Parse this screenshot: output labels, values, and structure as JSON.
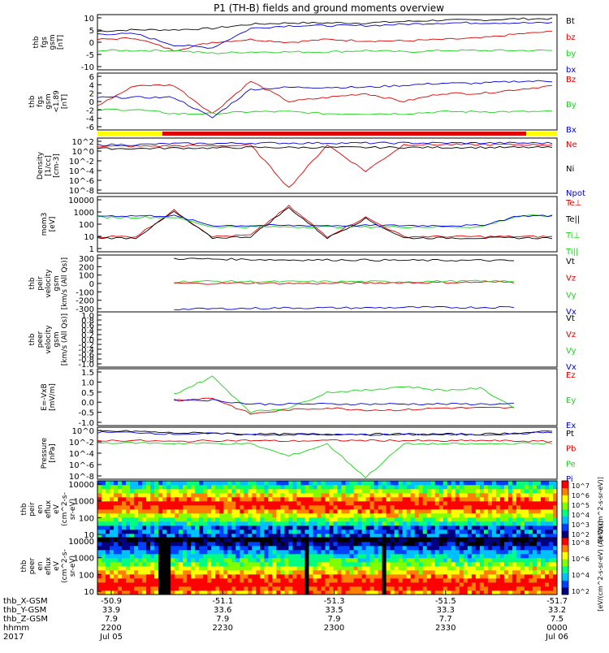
{
  "title": "P1 (TH-B) fields and ground moments overview",
  "colors": {
    "black": "#000000",
    "red": "#e00000",
    "green": "#19d419",
    "blue": "#0000dd",
    "yellow": "#ffff00"
  },
  "time_axis": {
    "ticks": [
      "2200",
      "2230",
      "2300",
      "2330",
      "0000"
    ],
    "x_gsm": [
      "-50.9",
      "-51.1",
      "-51.3",
      "-51.5",
      "-51.7"
    ],
    "y_gsm": [
      "33.9",
      "33.6",
      "33.5",
      "33.3",
      "33.2"
    ],
    "z_gsm": [
      "7.9",
      "7.9",
      "7.9",
      "7.7",
      "7.5"
    ],
    "dates": [
      "Jul 05",
      "",
      "",
      "",
      "Jul 06"
    ],
    "row_labels": [
      "thb_X-GSM",
      "thb_Y-GSM",
      "thb_Z-GSM",
      "hhmm",
      "2017"
    ]
  },
  "chart_data": [
    {
      "type": "line",
      "ylabel": [
        "thb",
        "fgs",
        "gsm",
        "[nT]"
      ],
      "yticks": [
        "10",
        "5",
        "0",
        "-5",
        "-10"
      ],
      "ylim": [
        -10,
        10
      ],
      "legend": [
        {
          "name": "Bt",
          "color": "black"
        },
        {
          "name": "bz",
          "color": "red"
        },
        {
          "name": "by",
          "color": "green"
        },
        {
          "name": "bx",
          "color": "blue"
        }
      ],
      "series": [
        {
          "name": "Bt",
          "color": "black",
          "values": [
            4,
            4.5,
            4.5,
            5,
            6.5,
            7,
            7,
            7,
            7.5,
            8,
            8,
            8.5,
            8.5
          ]
        },
        {
          "name": "bz",
          "color": "red",
          "values": [
            1,
            1.5,
            -3,
            0,
            1,
            0,
            1,
            0.5,
            0.5,
            1,
            1.5,
            3,
            4
          ]
        },
        {
          "name": "by",
          "color": "green",
          "values": [
            -3,
            -3,
            -3,
            -4,
            -3.5,
            -3.5,
            -3.5,
            -3,
            -3.5,
            -3,
            -3,
            -3,
            -3
          ]
        },
        {
          "name": "bx",
          "color": "blue",
          "values": [
            3,
            3,
            -1,
            -2,
            5,
            6,
            6,
            6,
            6.5,
            7,
            7,
            7,
            7
          ]
        }
      ]
    },
    {
      "type": "line",
      "ylabel": [
        "thb",
        "fgs",
        "gsm",
        "<1.89",
        "[nT]"
      ],
      "yticks": [
        "6",
        "4",
        "2",
        "0",
        "-2",
        "-4",
        "-6"
      ],
      "ylim": [
        -7,
        7
      ],
      "legend": [
        {
          "name": "Bz",
          "color": "red"
        },
        {
          "name": "By",
          "color": "green"
        },
        {
          "name": "Bx",
          "color": "blue"
        }
      ],
      "series": [
        {
          "name": "Bz",
          "color": "red",
          "values": [
            -1,
            4,
            4,
            -3,
            5,
            0,
            1,
            2,
            0,
            2,
            2,
            3,
            4
          ]
        },
        {
          "name": "By",
          "color": "green",
          "values": [
            -2,
            -2,
            -3,
            -3,
            -2.5,
            -2.5,
            -3,
            -3,
            -3,
            -2.5,
            -2.5,
            -2.5,
            -2.5
          ]
        },
        {
          "name": "Bx",
          "color": "blue",
          "values": [
            1,
            1,
            1,
            -4,
            3,
            3.5,
            3.5,
            3.5,
            4,
            4.5,
            4.5,
            5,
            5
          ]
        }
      ]
    },
    {
      "type": "line",
      "ylabel": [
        "Density",
        "[1/cc]",
        "[cm-3]"
      ],
      "yticks": [
        "10^2",
        "10^0",
        "10^-2",
        "10^-4",
        "10^-6",
        "10^-8"
      ],
      "ylim": [
        -8,
        2
      ],
      "log": true,
      "legend": [
        {
          "name": "Ne",
          "color": "red"
        },
        {
          "name": "Ni",
          "color": "black"
        },
        {
          "name": "Npot",
          "color": "blue"
        }
      ],
      "series": [
        {
          "name": "Ne",
          "color": "red",
          "values": [
            0.5,
            0.5,
            0.6,
            0.6,
            0.7,
            -7,
            0.8,
            -4,
            0.8,
            0.8,
            0.8,
            0.8,
            0.8
          ]
        },
        {
          "name": "Ni",
          "color": "black",
          "values": [
            0.1,
            0.1,
            0.2,
            0.2,
            0.3,
            0.3,
            0.3,
            0.3,
            0.3,
            0.3,
            0.3,
            0.3,
            0.3
          ]
        },
        {
          "name": "Npot",
          "color": "blue",
          "values": [
            0.8,
            0.8,
            1,
            1,
            1.1,
            1.1,
            1.1,
            1.1,
            1.1,
            1.1,
            1.1,
            1.1,
            1.1
          ]
        }
      ]
    },
    {
      "type": "line",
      "ylabel": [
        "mom3",
        "[eV]"
      ],
      "yticks": [
        "10000",
        "1000",
        "100",
        "10",
        "1"
      ],
      "ylim": [
        0,
        4
      ],
      "log": true,
      "legend": [
        {
          "name": "Te⊥",
          "color": "red"
        },
        {
          "name": "Te||",
          "color": "black"
        },
        {
          "name": "Ti⊥",
          "color": "green"
        },
        {
          "name": "Ti||",
          "color": "green"
        }
      ],
      "series": [
        {
          "name": "Te⊥",
          "color": "red",
          "values": [
            1.1,
            1.1,
            3,
            1.1,
            1.2,
            3.3,
            1.1,
            2.5,
            1.1,
            1.1,
            1.1,
            1.1,
            1.1
          ]
        },
        {
          "name": "Te||",
          "color": "black",
          "values": [
            1,
            1,
            2.9,
            1,
            1.1,
            3.2,
            1,
            2.4,
            1,
            1,
            1,
            1,
            1
          ]
        },
        {
          "name": "Ti⊥",
          "color": "green",
          "values": [
            2.5,
            2.5,
            2.5,
            1.8,
            1.8,
            1.8,
            1.8,
            1.8,
            1.8,
            1.8,
            1.8,
            2.6,
            2.6
          ]
        },
        {
          "name": "Ti||",
          "color": "blue",
          "values": [
            2.6,
            2.6,
            2.6,
            1.9,
            1.9,
            1.9,
            1.9,
            1.9,
            1.9,
            1.9,
            1.9,
            2.6,
            2.6
          ]
        }
      ]
    },
    {
      "type": "line",
      "ylabel": [
        "thb",
        "peir",
        "velocity",
        "gsm",
        "[km/s (All Qs)]"
      ],
      "yticks": [
        "300",
        "200",
        "100",
        "0",
        "-100",
        "-200",
        "-300"
      ],
      "ylim": [
        -320,
        320
      ],
      "legend": [
        {
          "name": "Vt",
          "color": "black"
        },
        {
          "name": "Vz",
          "color": "red"
        },
        {
          "name": "Vy",
          "color": "green"
        },
        {
          "name": "Vx",
          "color": "blue"
        }
      ],
      "series": [
        {
          "name": "Vt",
          "color": "black",
          "values": [
            null,
            null,
            280,
            275,
            270,
            265,
            265,
            265,
            260,
            260,
            260,
            255,
            null
          ]
        },
        {
          "name": "Vz",
          "color": "red",
          "values": [
            null,
            null,
            0,
            0,
            5,
            0,
            0,
            5,
            10,
            10,
            15,
            15,
            null
          ]
        },
        {
          "name": "Vy",
          "color": "green",
          "values": [
            null,
            null,
            20,
            25,
            20,
            20,
            20,
            20,
            20,
            25,
            25,
            25,
            null
          ]
        },
        {
          "name": "Vx",
          "color": "blue",
          "values": [
            null,
            null,
            -290,
            -285,
            -280,
            -275,
            -275,
            -275,
            -270,
            -270,
            -270,
            -265,
            null
          ]
        }
      ]
    },
    {
      "type": "line",
      "ylabel": [
        "thb",
        "peer",
        "velocity",
        "gsm",
        "[km/s (All Qs)]"
      ],
      "yticks": [
        "1.0",
        "0.8",
        "0.6",
        "0.4",
        "0.2",
        "0.0",
        "-0.2",
        "-0.4",
        "-0.6",
        "-0.8",
        "-1.0"
      ],
      "ylim": [
        -1,
        1
      ],
      "legend": [
        {
          "name": "Vt",
          "color": "black"
        },
        {
          "name": "Vz",
          "color": "red"
        },
        {
          "name": "Vy",
          "color": "green"
        },
        {
          "name": "Vx",
          "color": "blue"
        }
      ],
      "series": []
    },
    {
      "type": "line",
      "ylabel": [
        "E=-VxB",
        "[mV/m]"
      ],
      "yticks": [
        "1.5",
        "1.0",
        "0.5",
        "0.0",
        "-0.5",
        "-1.0"
      ],
      "ylim": [
        -1.2,
        1.7
      ],
      "legend": [
        {
          "name": "Ez",
          "color": "red"
        },
        {
          "name": "Ey",
          "color": "green"
        },
        {
          "name": "Ex",
          "color": "blue"
        }
      ],
      "series": [
        {
          "name": "Ez",
          "color": "red",
          "values": [
            null,
            null,
            0.1,
            0.2,
            -0.6,
            -0.4,
            -0.3,
            -0.4,
            -0.4,
            -0.3,
            -0.3,
            -0.3,
            null
          ]
        },
        {
          "name": "Ey",
          "color": "green",
          "values": [
            null,
            null,
            0.4,
            1.3,
            -0.5,
            -0.3,
            0.5,
            0.6,
            0.8,
            0.6,
            0.7,
            -0.4,
            null
          ]
        },
        {
          "name": "Ex",
          "color": "blue",
          "values": [
            null,
            null,
            0.1,
            0.1,
            -0.1,
            -0.1,
            -0.1,
            -0.1,
            -0.1,
            -0.1,
            -0.1,
            -0.1,
            null
          ]
        }
      ]
    },
    {
      "type": "line",
      "ylabel": [
        "Pressure",
        "[nPa]"
      ],
      "yticks": [
        "10^0",
        "10^-2",
        "10^-4",
        "10^-6",
        "10^-8"
      ],
      "ylim": [
        -8.5,
        0.5
      ],
      "log": true,
      "legend": [
        {
          "name": "Pt",
          "color": "black"
        },
        {
          "name": "Pb",
          "color": "red"
        },
        {
          "name": "Pe",
          "color": "green"
        },
        {
          "name": "Pi",
          "color": "blue"
        }
      ],
      "series": [
        {
          "name": "Pt",
          "color": "black",
          "values": [
            -0.2,
            -0.2,
            -0.5,
            -0.5,
            -0.7,
            -0.7,
            -0.7,
            -0.7,
            -0.7,
            -0.7,
            -0.7,
            -0.5,
            -0.2
          ]
        },
        {
          "name": "Pb",
          "color": "red",
          "values": [
            -1.8,
            -1.8,
            -2,
            -1.8,
            -1.8,
            -1.9,
            -1.8,
            -1.8,
            -1.8,
            -1.9,
            -1.8,
            -1.9,
            -2
          ]
        },
        {
          "name": "Pe",
          "color": "green",
          "values": [
            -2.2,
            -2.2,
            -2.3,
            -2.3,
            -2.4,
            -4.5,
            -2.4,
            -8.2,
            -2.4,
            -2.4,
            -2.4,
            -2.3,
            -2.3
          ]
        },
        {
          "name": "Pi",
          "color": "blue",
          "values": [
            -0.4,
            -0.4,
            -0.7,
            -0.6,
            -0.8,
            -0.8,
            -0.8,
            -0.8,
            -0.8,
            -0.8,
            -0.8,
            -0.6,
            -0.3
          ]
        }
      ]
    },
    {
      "type": "heatmap",
      "ylabel": [
        "thb",
        "peir",
        "en",
        "eflux",
        "eV",
        "(cm^2-s-",
        "sr-eV)"
      ],
      "yticks": [
        "10000",
        "1000",
        "100",
        "10"
      ],
      "colorbar": {
        "ticks": [
          "10^7",
          "10^6",
          "10^5",
          "10^4",
          "10^3",
          "10^2"
        ],
        "label": "[eV/(cm^2-s-sr-eV)]"
      }
    },
    {
      "type": "heatmap",
      "ylabel": [
        "thb",
        "peer",
        "en",
        "eflux",
        "eV",
        "(cm^2-s-",
        "sr-eV)"
      ],
      "yticks": [
        "10000",
        "1000",
        "100",
        "10"
      ],
      "colorbar": {
        "ticks": [
          "10^8",
          "10^6",
          "10^4",
          "10^2"
        ],
        "label": "[eV/(cm^2-s-sr-eV) (All Qs)]"
      }
    }
  ]
}
